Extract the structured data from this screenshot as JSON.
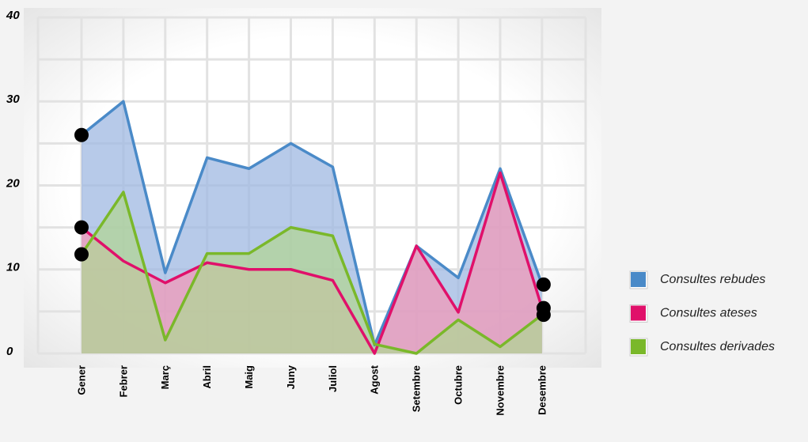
{
  "chart_data": {
    "type": "area",
    "categories": [
      "Gener",
      "Febrer",
      "Març",
      "Abril",
      "Maig",
      "Juny",
      "Juliol",
      "Agost",
      "Setembre",
      "Octubre",
      "Novembre",
      "Desembre"
    ],
    "series": [
      {
        "name": "Consultes rebudes",
        "color": "#4a8ac8",
        "fill": "#9fb8e2",
        "values": [
          26,
          30,
          9.6,
          23.3,
          22,
          25,
          22.2,
          1,
          12.8,
          9,
          22,
          8.2
        ]
      },
      {
        "name": "Consultes ateses",
        "color": "#e0106a",
        "fill": "#f09ab8",
        "values": [
          15,
          11,
          8.4,
          10.8,
          10,
          10,
          8.7,
          0,
          12.8,
          4.9,
          21.5,
          5.4
        ]
      },
      {
        "name": "Consultes derivades",
        "color": "#7ab82a",
        "fill": "#b2d496",
        "values": [
          11.8,
          19.2,
          1.6,
          11.9,
          11.9,
          15,
          14,
          1.1,
          0,
          4,
          0.8,
          4.6
        ]
      }
    ],
    "ylim": [
      0,
      40
    ],
    "yticks": [
      0,
      10,
      20,
      30,
      40
    ],
    "grid": true,
    "legend": "right"
  }
}
